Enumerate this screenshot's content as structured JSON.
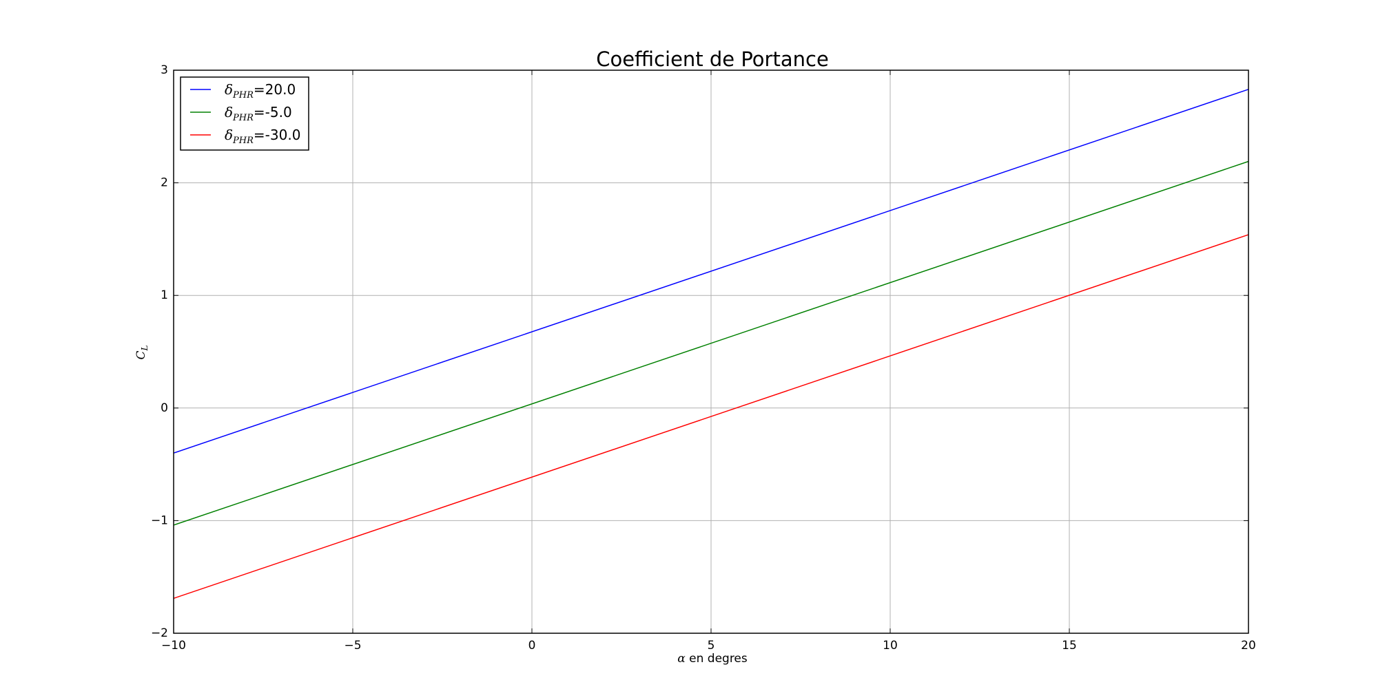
{
  "chart_data": {
    "type": "line",
    "title": "Coefficient de Portance",
    "xlabel": {
      "symbol": "α",
      "text": " en degres"
    },
    "ylabel": "C",
    "ylabel_sub": "L",
    "xlim": [
      -10,
      20
    ],
    "ylim": [
      -2,
      3
    ],
    "xticks": [
      -10,
      -5,
      0,
      5,
      10,
      15,
      20
    ],
    "xtick_labels": [
      "−10",
      "−5",
      "0",
      "5",
      "10",
      "15",
      "20"
    ],
    "yticks": [
      -2,
      -1,
      0,
      1,
      2,
      3
    ],
    "ytick_labels": [
      "−2",
      "−1",
      "0",
      "1",
      "2",
      "3"
    ],
    "grid": true,
    "legend_position": "top-left",
    "legend_symbol": "δ",
    "legend_subscript": "PHR",
    "series": [
      {
        "name": "=20.0",
        "color": "#0000ff",
        "x": [
          -10,
          20
        ],
        "y": [
          -0.4,
          2.83
        ]
      },
      {
        "name": "=-5.0",
        "color": "#008000",
        "x": [
          -10,
          20
        ],
        "y": [
          -1.04,
          2.19
        ]
      },
      {
        "name": "=-30.0",
        "color": "#ff0000",
        "x": [
          -10,
          20
        ],
        "y": [
          -1.69,
          1.54
        ]
      }
    ]
  }
}
